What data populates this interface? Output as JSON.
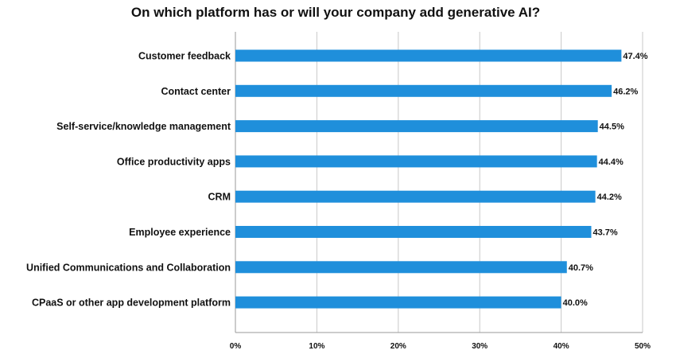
{
  "chart_data": {
    "type": "bar",
    "orientation": "horizontal",
    "title": "On which platform has or will your company add generative AI?",
    "categories": [
      "Customer feedback",
      "Contact center",
      "Self-service/knowledge management",
      "Office productivity apps",
      "CRM",
      "Employee experience",
      "Unified Communications and Collaboration",
      "CPaaS or other app development platform"
    ],
    "values": [
      47.4,
      46.2,
      44.5,
      44.4,
      44.2,
      43.7,
      40.7,
      40.0
    ],
    "data_labels": [
      "47.4%",
      "46.2%",
      "44.5%",
      "44.4%",
      "44.2%",
      "43.7%",
      "40.7%",
      "40.0%"
    ],
    "xlim": [
      0,
      50
    ],
    "xticks": [
      0,
      10,
      20,
      30,
      40,
      50
    ],
    "xtick_labels": [
      "0%",
      "10%",
      "20%",
      "30%",
      "40%",
      "50%"
    ],
    "grid": true,
    "legend": "none",
    "bar_color": "#1f8fdb",
    "grid_color": "#c8c8c8"
  }
}
